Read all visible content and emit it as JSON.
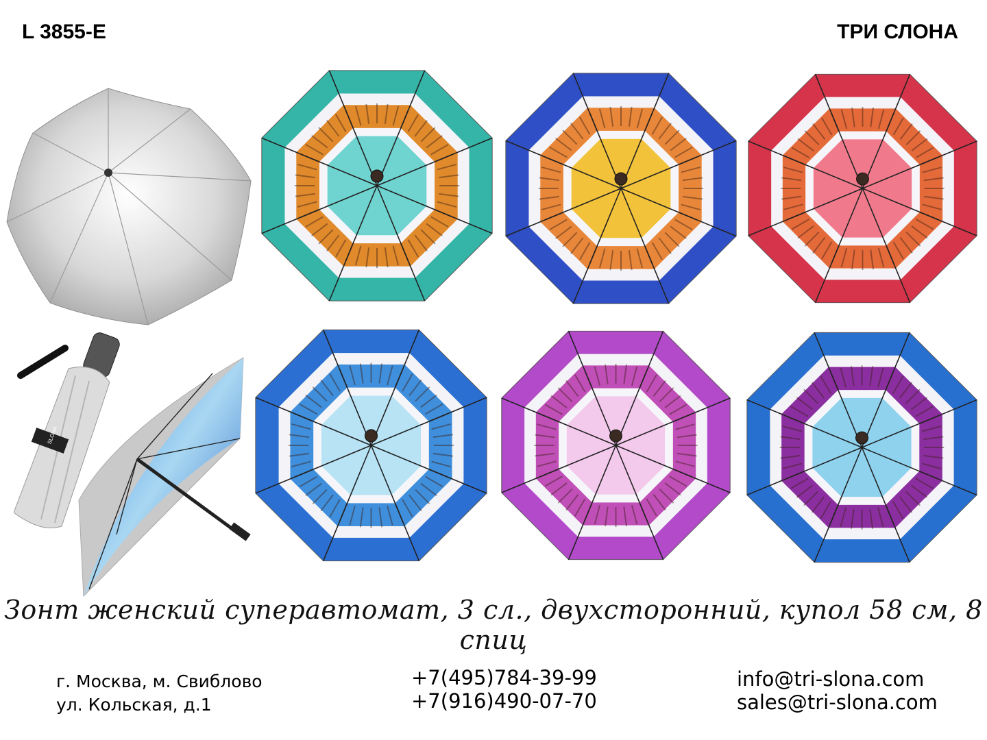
{
  "header": {
    "model_code": "L 3855-E",
    "brand": "ТРИ СЛОНА"
  },
  "product": {
    "description": "Зонт женский суперавтомат, 3 сл., двухсторонний, купол 58 см, 8 спиц",
    "folded_label": "SLONA"
  },
  "variants": [
    {
      "name": "turquoise",
      "center": "#6fd3cf",
      "band": "#e08a2c",
      "edge": "#35b5a8"
    },
    {
      "name": "yellow-blue",
      "center": "#f2c23a",
      "band": "#e8873a",
      "edge": "#2f4fc6"
    },
    {
      "name": "pink-red",
      "center": "#f07a8c",
      "band": "#e46a3a",
      "edge": "#d6344a"
    },
    {
      "name": "sky-blue",
      "center": "#b7e3f5",
      "band": "#3f8fdc",
      "edge": "#2c6fd2"
    },
    {
      "name": "lilac",
      "center": "#f3c9ec",
      "band": "#c04fb8",
      "edge": "#b24ac9"
    },
    {
      "name": "blue-violet",
      "center": "#8ed2ee",
      "band": "#8b2fa0",
      "edge": "#2870d0"
    }
  ],
  "footer": {
    "address_line1": "г. Москва, м. Свиблово",
    "address_line2": "ул. Кольская, д.1",
    "phone1": "+7(495)784-39-99",
    "phone2": "+7(916)490-07-70",
    "email1": "info@tri-slona.com",
    "email2": "sales@tri-slona.com"
  }
}
